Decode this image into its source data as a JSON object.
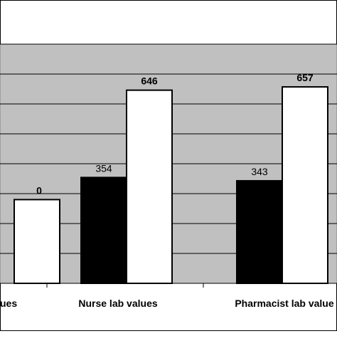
{
  "chart_data": {
    "type": "bar",
    "categories": [
      "... lab values",
      "Nurse lab values",
      "Pharmacist lab values"
    ],
    "category_labels_visible": [
      "ues",
      "Nurse lab values",
      "Pharmacist lab value"
    ],
    "series": [
      {
        "name": "",
        "color": "#000000",
        "values": [
          null,
          354,
          343
        ]
      },
      {
        "name": "",
        "color": "#ffffff",
        "values": [
          280,
          646,
          657
        ]
      }
    ],
    "data_labels": [
      {
        "series": 0,
        "labels": [
          "",
          "354",
          "343"
        ],
        "bold": false
      },
      {
        "series": 1,
        "labels": [
          "0",
          "646",
          "657"
        ],
        "bold": true
      }
    ],
    "title": "",
    "xlabel": "",
    "ylabel": "",
    "ylim": [
      0,
      800
    ],
    "grid": true,
    "plot_background": "#c0c0c0",
    "legend": "none"
  }
}
